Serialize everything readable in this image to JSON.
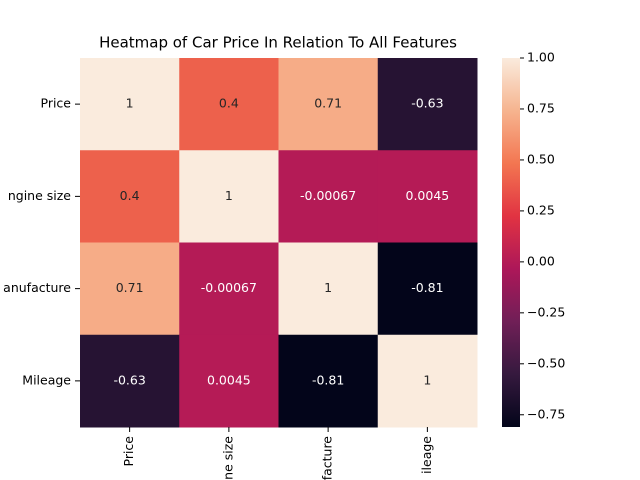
{
  "chart_data": {
    "type": "heatmap",
    "title": "Heatmap of Car Price In Relation To All Features",
    "x_categories": [
      "Price",
      "ne size",
      "ufacture",
      "ileage"
    ],
    "y_categories": [
      "Price",
      "ngine size",
      "anufacture",
      "Mileage"
    ],
    "values": [
      [
        1,
        0.4,
        0.71,
        -0.63
      ],
      [
        0.4,
        1,
        -0.00067,
        0.0045
      ],
      [
        0.71,
        -0.00067,
        1,
        -0.81
      ],
      [
        -0.63,
        0.0045,
        -0.81,
        1
      ]
    ],
    "colormap": [
      "#03051a",
      "#35193e",
      "#701f57",
      "#ad1759",
      "#e13342",
      "#f37651",
      "#f6b48f",
      "#faebdd"
    ],
    "clim": [
      -0.81,
      1
    ],
    "cticks": [
      {
        "value": -0.75,
        "label": "−0.75"
      },
      {
        "value": -0.5,
        "label": "−0.50"
      },
      {
        "value": -0.25,
        "label": "−0.25"
      },
      {
        "value": 0,
        "label": "0.00"
      },
      {
        "value": 0.25,
        "label": "0.25"
      },
      {
        "value": 0.5,
        "label": "0.50"
      },
      {
        "value": 0.75,
        "label": "0.75"
      },
      {
        "value": 1,
        "label": "1.00"
      }
    ]
  }
}
